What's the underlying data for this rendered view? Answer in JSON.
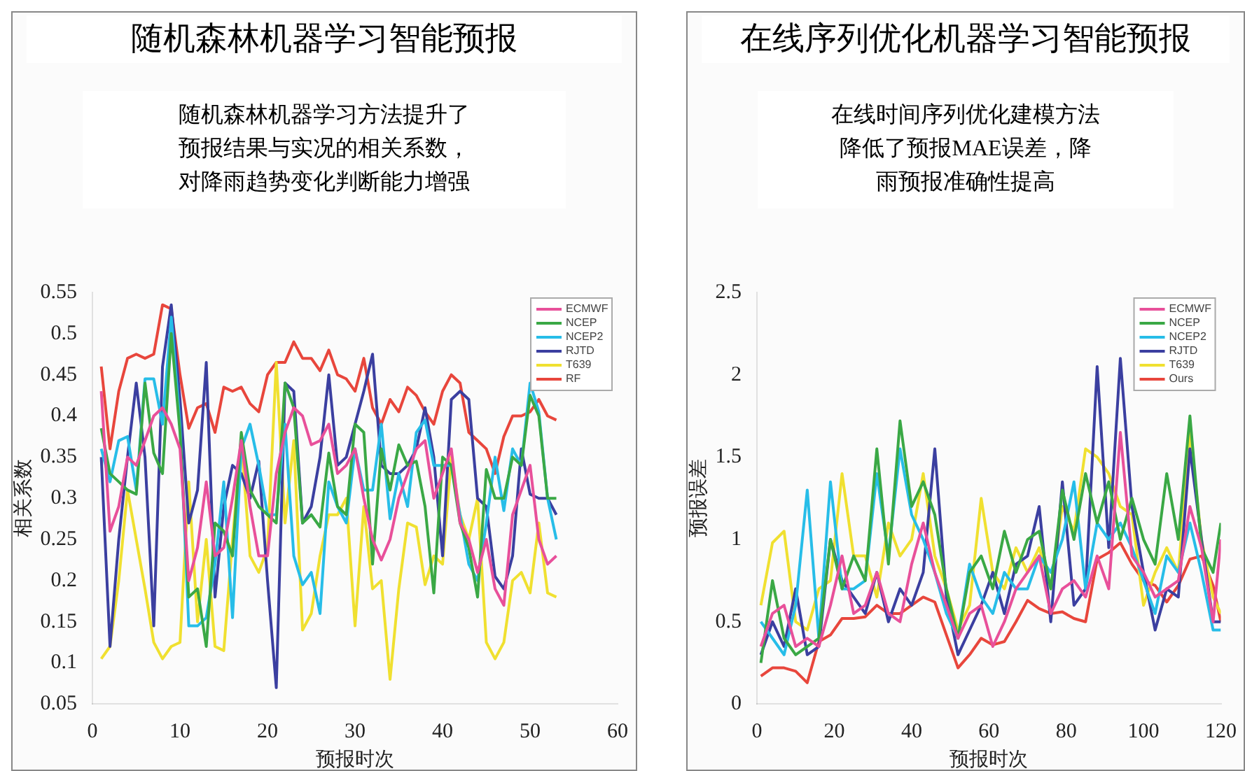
{
  "chart_data": [
    {
      "type": "line",
      "title": "随机森林机器学习智能预报",
      "annotations": [
        "随机森林机器学习方法提升了预报结果与实况的相关系数，对降雨趋势变化判断能力增强"
      ],
      "xlabel": "预报时次",
      "ylabel": "相关系数",
      "legend": "top right",
      "marker": "none",
      "xlim": [
        0,
        60
      ],
      "xticks": [
        0,
        10,
        20,
        30,
        40,
        50,
        60
      ],
      "ylim": [
        0.05,
        0.55
      ],
      "yticks": [
        0.05,
        0.1,
        0.15,
        0.2,
        0.25,
        0.3,
        0.35,
        0.4,
        0.45,
        0.5,
        0.55
      ],
      "x": [
        1,
        2,
        3,
        4,
        5,
        6,
        7,
        8,
        9,
        10,
        11,
        12,
        13,
        14,
        15,
        16,
        17,
        18,
        19,
        20,
        21,
        22,
        23,
        24,
        25,
        26,
        27,
        28,
        29,
        30,
        31,
        32,
        33,
        34,
        35,
        36,
        37,
        38,
        39,
        40,
        41,
        42,
        43,
        44,
        45,
        46,
        47,
        48,
        49,
        50,
        51,
        52,
        53
      ],
      "series": [
        {
          "name": "ECMWF",
          "color": "#e8509a",
          "values": [
            0.43,
            0.26,
            0.29,
            0.35,
            0.34,
            0.37,
            0.4,
            0.41,
            0.39,
            0.36,
            0.2,
            0.24,
            0.32,
            0.23,
            0.24,
            0.3,
            0.37,
            0.29,
            0.23,
            0.23,
            0.33,
            0.38,
            0.41,
            0.4,
            0.365,
            0.37,
            0.39,
            0.33,
            0.34,
            0.36,
            0.3,
            0.25,
            0.225,
            0.25,
            0.3,
            0.33,
            0.36,
            0.37,
            0.3,
            0.33,
            0.36,
            0.27,
            0.25,
            0.21,
            0.25,
            0.19,
            0.17,
            0.28,
            0.31,
            0.34,
            0.25,
            0.22,
            0.23
          ]
        },
        {
          "name": "NCEP",
          "color": "#3aa845",
          "values": [
            0.385,
            0.33,
            0.32,
            0.31,
            0.305,
            0.44,
            0.355,
            0.33,
            0.5,
            0.38,
            0.18,
            0.19,
            0.12,
            0.27,
            0.26,
            0.23,
            0.38,
            0.31,
            0.29,
            0.28,
            0.27,
            0.44,
            0.41,
            0.27,
            0.28,
            0.265,
            0.355,
            0.29,
            0.28,
            0.39,
            0.38,
            0.22,
            0.36,
            0.31,
            0.365,
            0.34,
            0.345,
            0.29,
            0.185,
            0.35,
            0.34,
            0.27,
            0.24,
            0.18,
            0.335,
            0.3,
            0.3,
            0.35,
            0.34,
            0.425,
            0.4,
            0.3,
            0.3
          ]
        },
        {
          "name": "NCEP2",
          "color": "#27bde8",
          "values": [
            0.36,
            0.32,
            0.37,
            0.375,
            0.31,
            0.445,
            0.445,
            0.39,
            0.52,
            0.39,
            0.145,
            0.145,
            0.155,
            0.22,
            0.32,
            0.155,
            0.36,
            0.39,
            0.34,
            0.28,
            0.28,
            0.39,
            0.23,
            0.195,
            0.21,
            0.16,
            0.32,
            0.29,
            0.27,
            0.36,
            0.31,
            0.31,
            0.39,
            0.275,
            0.33,
            0.29,
            0.38,
            0.395,
            0.34,
            0.34,
            0.34,
            0.28,
            0.22,
            0.2,
            0.27,
            0.35,
            0.285,
            0.36,
            0.34,
            0.44,
            0.405,
            0.3,
            0.25
          ]
        },
        {
          "name": "RJTD",
          "color": "#3b3fa0",
          "values": [
            0.35,
            0.12,
            0.25,
            0.35,
            0.44,
            0.35,
            0.145,
            0.46,
            0.535,
            0.42,
            0.27,
            0.31,
            0.465,
            0.18,
            0.29,
            0.34,
            0.33,
            0.3,
            0.345,
            0.2,
            0.07,
            0.44,
            0.43,
            0.27,
            0.29,
            0.35,
            0.45,
            0.34,
            0.35,
            0.39,
            0.43,
            0.475,
            0.34,
            0.33,
            0.33,
            0.34,
            0.36,
            0.41,
            0.35,
            0.23,
            0.42,
            0.43,
            0.42,
            0.3,
            0.29,
            0.205,
            0.19,
            0.23,
            0.36,
            0.305,
            0.3,
            0.3,
            0.28
          ]
        },
        {
          "name": "T639",
          "color": "#f0e030",
          "values": [
            0.105,
            0.12,
            0.2,
            0.31,
            0.25,
            0.19,
            0.125,
            0.105,
            0.12,
            0.125,
            0.32,
            0.15,
            0.25,
            0.12,
            0.115,
            0.25,
            0.37,
            0.23,
            0.21,
            0.24,
            0.465,
            0.27,
            0.37,
            0.14,
            0.16,
            0.23,
            0.28,
            0.28,
            0.3,
            0.145,
            0.29,
            0.19,
            0.2,
            0.08,
            0.19,
            0.27,
            0.265,
            0.195,
            0.23,
            0.22,
            0.35,
            0.28,
            0.25,
            0.3,
            0.125,
            0.105,
            0.125,
            0.2,
            0.21,
            0.185,
            0.27,
            0.185,
            0.18
          ]
        },
        {
          "name": "RF",
          "color": "#e8463c",
          "values": [
            0.46,
            0.36,
            0.43,
            0.47,
            0.475,
            0.47,
            0.475,
            0.535,
            0.53,
            0.45,
            0.385,
            0.41,
            0.415,
            0.38,
            0.435,
            0.43,
            0.435,
            0.415,
            0.405,
            0.45,
            0.465,
            0.465,
            0.49,
            0.47,
            0.47,
            0.455,
            0.48,
            0.45,
            0.445,
            0.43,
            0.47,
            0.41,
            0.39,
            0.42,
            0.405,
            0.435,
            0.425,
            0.405,
            0.39,
            0.43,
            0.45,
            0.44,
            0.38,
            0.37,
            0.36,
            0.33,
            0.375,
            0.4,
            0.4,
            0.405,
            0.42,
            0.4,
            0.395
          ]
        }
      ]
    },
    {
      "type": "line",
      "title": "在线序列优化机器学习智能预报",
      "annotations": [
        "在线时间序列优化建模方法降低了预报MAE误差，降雨预报准确性提高"
      ],
      "xlabel": "预报时次",
      "ylabel": "预报误差",
      "legend": "top right",
      "marker": "none",
      "xlim": [
        0,
        120
      ],
      "xticks": [
        0,
        20,
        40,
        60,
        80,
        100,
        120
      ],
      "ylim": [
        0,
        2.5
      ],
      "yticks": [
        0,
        0.5,
        1,
        1.5,
        2,
        2.5
      ],
      "x": [
        1,
        4,
        7,
        10,
        13,
        16,
        19,
        22,
        25,
        28,
        31,
        34,
        37,
        40,
        43,
        46,
        49,
        52,
        55,
        58,
        61,
        64,
        67,
        70,
        73,
        76,
        79,
        82,
        85,
        88,
        91,
        94,
        97,
        100,
        103,
        106,
        109,
        112,
        115,
        118,
        120
      ],
      "series": [
        {
          "name": "ECMWF",
          "color": "#e8509a",
          "values": [
            0.35,
            0.55,
            0.6,
            0.35,
            0.4,
            0.35,
            0.6,
            0.9,
            0.55,
            0.6,
            0.8,
            0.55,
            0.5,
            0.85,
            1.1,
            0.8,
            0.6,
            0.4,
            0.55,
            0.6,
            0.35,
            0.5,
            0.7,
            0.8,
            0.9,
            0.55,
            0.7,
            0.75,
            0.65,
            0.9,
            0.7,
            1.65,
            0.9,
            0.8,
            0.65,
            0.7,
            0.75,
            1.2,
            0.95,
            0.5,
            1.0
          ]
        },
        {
          "name": "NCEP",
          "color": "#3aa845",
          "values": [
            0.25,
            0.75,
            0.4,
            0.3,
            0.35,
            0.4,
            1.0,
            0.7,
            0.9,
            0.75,
            1.55,
            0.85,
            1.72,
            1.2,
            1.35,
            1.15,
            0.7,
            0.4,
            0.8,
            0.9,
            0.7,
            1.05,
            0.8,
            1.0,
            1.05,
            0.7,
            1.3,
            1.0,
            1.4,
            1.1,
            1.35,
            1.0,
            1.25,
            1.0,
            0.85,
            1.4,
            1.0,
            1.75,
            0.95,
            0.8,
            1.1
          ]
        },
        {
          "name": "NCEP2",
          "color": "#27bde8",
          "values": [
            0.5,
            0.4,
            0.3,
            0.6,
            1.3,
            0.4,
            1.35,
            0.7,
            0.7,
            0.75,
            1.4,
            0.9,
            1.55,
            1.15,
            1.0,
            0.8,
            0.55,
            0.4,
            0.85,
            0.65,
            0.55,
            0.8,
            0.7,
            0.7,
            0.9,
            0.8,
            1.0,
            1.35,
            0.7,
            1.1,
            1.0,
            1.1,
            0.95,
            0.75,
            0.55,
            0.9,
            0.8,
            1.1,
            0.8,
            0.45,
            0.45
          ]
        },
        {
          "name": "RJTD",
          "color": "#3b3fa0",
          "values": [
            0.3,
            0.5,
            0.35,
            0.7,
            0.3,
            0.35,
            1.0,
            0.75,
            0.65,
            0.55,
            0.8,
            0.5,
            0.7,
            0.6,
            0.8,
            1.55,
            0.65,
            0.3,
            0.45,
            0.6,
            0.8,
            0.55,
            0.85,
            0.9,
            1.2,
            0.5,
            1.35,
            0.6,
            0.7,
            2.05,
            0.95,
            2.1,
            1.2,
            0.8,
            0.45,
            0.7,
            0.65,
            1.55,
            1.0,
            0.5,
            0.5
          ]
        },
        {
          "name": "T639",
          "color": "#f0e030",
          "values": [
            0.6,
            0.98,
            1.05,
            0.5,
            0.45,
            0.7,
            0.75,
            1.4,
            0.9,
            0.9,
            0.65,
            1.1,
            0.9,
            1.0,
            1.4,
            0.9,
            0.7,
            0.45,
            0.6,
            1.25,
            0.8,
            0.7,
            0.95,
            0.8,
            0.95,
            0.7,
            1.2,
            1.05,
            1.55,
            1.5,
            1.4,
            1.2,
            1.15,
            0.6,
            0.8,
            0.95,
            0.8,
            1.65,
            1.0,
            0.65,
            0.55
          ]
        },
        {
          "name": "Ours",
          "color": "#e8463c",
          "values": [
            0.17,
            0.22,
            0.22,
            0.2,
            0.13,
            0.38,
            0.42,
            0.52,
            0.52,
            0.53,
            0.6,
            0.55,
            0.55,
            0.6,
            0.65,
            0.62,
            0.42,
            0.22,
            0.3,
            0.4,
            0.36,
            0.38,
            0.5,
            0.63,
            0.58,
            0.55,
            0.56,
            0.52,
            0.5,
            0.88,
            0.92,
            0.98,
            0.85,
            0.75,
            0.72,
            0.62,
            0.72,
            0.88,
            0.9,
            0.72,
            0.5
          ]
        }
      ]
    }
  ]
}
